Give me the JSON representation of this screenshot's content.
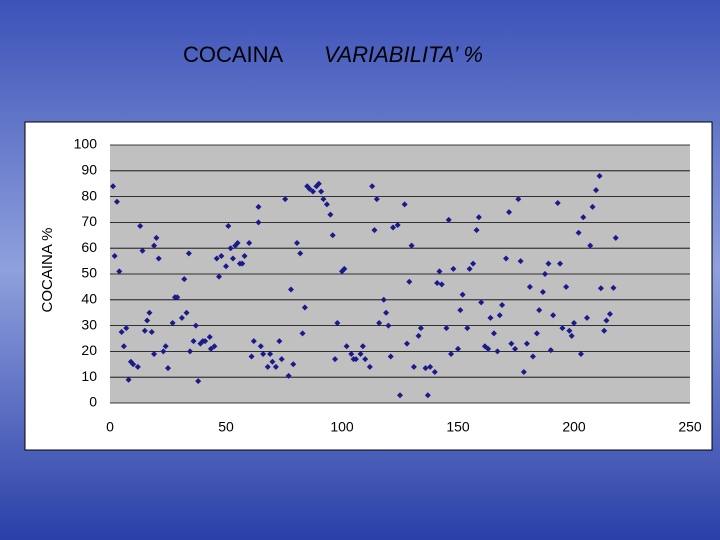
{
  "chart_data": {
    "type": "scatter",
    "title": "COCAINA",
    "title_italic": "VARIABILITA’ %",
    "y_label": "COCAINA %",
    "color": "#1a1a8c",
    "grid": true,
    "xlim": [
      0,
      250
    ],
    "xticks": [
      0,
      50,
      100,
      150,
      200,
      250
    ],
    "ylim": [
      0,
      100
    ],
    "yticks": [
      0,
      10,
      20,
      30,
      40,
      50,
      60,
      70,
      80,
      90,
      100
    ],
    "x": [
      1.3,
      3,
      2,
      4,
      5,
      6,
      7,
      8,
      9,
      10,
      12,
      13,
      14,
      15,
      16,
      17,
      18,
      19,
      20,
      21,
      19,
      23,
      24,
      25,
      27,
      28,
      29,
      31,
      32,
      33,
      34,
      34.5,
      36,
      37,
      38,
      39,
      40,
      41,
      43,
      43.5,
      45,
      46,
      47,
      48,
      50,
      51,
      52,
      53,
      54,
      55,
      56,
      57,
      58,
      60,
      61,
      62,
      64,
      64,
      65,
      66,
      68,
      69,
      70,
      71.5,
      73,
      74,
      75.5,
      77,
      78,
      79,
      80.6,
      82,
      83,
      84,
      85,
      86,
      87.5,
      89,
      90,
      91,
      92,
      93.5,
      95,
      96,
      97,
      98,
      100,
      101,
      102,
      104,
      105,
      106,
      108,
      109,
      110,
      112,
      113,
      114,
      115,
      116,
      118,
      119,
      120,
      121,
      122,
      124,
      125,
      127,
      128,
      129,
      130,
      131,
      133,
      134,
      136,
      137,
      138,
      140,
      141,
      142,
      143,
      145,
      146,
      147,
      148,
      150,
      151,
      152,
      154,
      155,
      156.5,
      158,
      159,
      160,
      161.6,
      163,
      164,
      165.5,
      167,
      168,
      169,
      170.7,
      172,
      173,
      174.6,
      176,
      177,
      178.4,
      179.7,
      181,
      182.3,
      184,
      185,
      186.6,
      187.5,
      189,
      190,
      191,
      193,
      194,
      195,
      196.6,
      198,
      199,
      200,
      202,
      203,
      204,
      205.6,
      207,
      208,
      209.5,
      211,
      211.6,
      213,
      214,
      215.5,
      217,
      218
    ],
    "values": [
      84,
      78,
      57,
      51,
      27.5,
      22,
      29,
      9,
      16,
      15,
      14,
      68.6,
      59,
      28,
      32,
      35,
      27.5,
      61,
      64,
      56,
      19,
      20,
      22,
      13.5,
      31,
      41,
      41,
      33,
      48,
      35,
      58,
      20,
      24,
      30,
      8.5,
      23,
      24,
      24,
      25.6,
      21,
      22,
      56,
      49,
      57,
      53,
      68.6,
      60,
      56,
      61,
      62,
      54,
      54,
      57,
      62,
      18,
      24,
      76,
      70,
      22,
      19,
      14,
      19,
      16,
      14,
      24,
      17,
      79,
      10.5,
      44,
      15,
      62,
      58,
      27,
      37,
      84,
      83,
      82,
      84,
      85,
      82,
      79,
      77,
      73,
      65,
      17,
      31,
      51,
      52,
      22,
      19,
      17,
      17,
      19,
      22,
      17,
      14,
      84,
      67,
      79,
      31,
      40,
      35,
      30,
      18,
      68,
      69,
      3,
      77,
      23,
      47,
      61,
      14,
      26,
      29,
      13.5,
      3,
      14,
      12,
      46.5,
      51,
      46,
      29,
      71,
      19,
      52,
      21,
      36,
      42,
      29,
      52,
      54,
      67,
      72,
      39,
      22,
      21,
      33,
      27,
      20,
      34,
      38,
      56,
      74,
      23,
      21,
      79,
      55,
      12,
      23,
      45,
      18,
      27,
      36,
      43,
      50,
      54,
      20.5,
      34,
      77.5,
      54,
      29,
      45,
      28,
      26,
      31,
      66,
      19,
      72,
      33,
      61,
      76,
      82.5,
      88,
      44.5,
      28,
      32,
      34.5,
      44.6,
      64
    ]
  }
}
